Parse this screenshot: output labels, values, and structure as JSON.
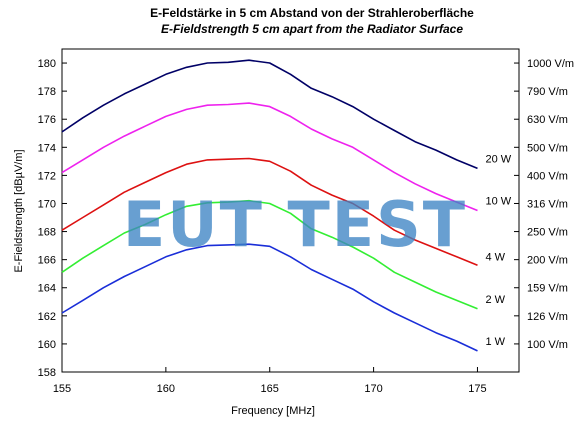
{
  "chart_data": {
    "type": "line",
    "title": "E-Feldstärke in 5 cm Abstand von der Strahleroberfläche",
    "subtitle": "E-Fieldstrength 5 cm apart from the Radiator Surface",
    "xlabel": "Frequency [MHz]",
    "ylabel": "E-Fieldstrength [dBµV/m]",
    "xlim": [
      155,
      177
    ],
    "ylim": [
      158,
      181
    ],
    "x_ticks": [
      155,
      160,
      165,
      170,
      175
    ],
    "y_ticks": [
      158,
      160,
      162,
      164,
      166,
      168,
      170,
      172,
      174,
      176,
      178,
      180
    ],
    "right_axis_labels": [
      {
        "y": 180,
        "label": "1000 V/m"
      },
      {
        "y": 178,
        "label": "790 V/m"
      },
      {
        "y": 176,
        "label": "630 V/m"
      },
      {
        "y": 174,
        "label": "500 V/m"
      },
      {
        "y": 172,
        "label": "400 V/m"
      },
      {
        "y": 170,
        "label": "316 V/m"
      },
      {
        "y": 168,
        "label": "250 V/m"
      },
      {
        "y": 166,
        "label": "200 V/m"
      },
      {
        "y": 164,
        "label": "159 V/m"
      },
      {
        "y": 162,
        "label": "126 V/m"
      },
      {
        "y": 160,
        "label": "100 V/m"
      }
    ],
    "x": [
      155,
      156,
      157,
      158,
      159,
      160,
      161,
      162,
      163,
      164,
      165,
      166,
      167,
      168,
      169,
      170,
      171,
      172,
      173,
      174,
      175
    ],
    "series": [
      {
        "name": "20 W",
        "color": "#000066",
        "label_y": 172.5,
        "values": [
          175.1,
          176.1,
          177.0,
          177.8,
          178.5,
          179.2,
          179.7,
          180.0,
          180.05,
          180.2,
          180.0,
          179.2,
          178.2,
          177.6,
          176.9,
          176.0,
          175.2,
          174.4,
          173.8,
          173.1,
          172.5
        ]
      },
      {
        "name": "10 W",
        "color": "#ee22ee",
        "label_y": 169.5,
        "values": [
          172.2,
          173.1,
          174.0,
          174.8,
          175.5,
          176.2,
          176.7,
          177.0,
          177.05,
          177.15,
          176.9,
          176.2,
          175.3,
          174.6,
          174.0,
          173.1,
          172.2,
          171.4,
          170.7,
          170.1,
          169.5
        ]
      },
      {
        "name": "4 W",
        "color": "#dd1111",
        "label_y": 165.5,
        "values": [
          168.1,
          169.0,
          169.9,
          170.8,
          171.5,
          172.2,
          172.8,
          173.1,
          173.15,
          173.2,
          173.0,
          172.3,
          171.3,
          170.6,
          170.0,
          169.1,
          168.1,
          167.4,
          166.8,
          166.2,
          165.6
        ]
      },
      {
        "name": "2 W",
        "color": "#33ee33",
        "label_y": 162.5,
        "values": [
          165.1,
          166.1,
          167.0,
          167.9,
          168.5,
          169.2,
          169.8,
          170.05,
          170.1,
          170.2,
          170.0,
          169.3,
          168.2,
          167.6,
          166.9,
          166.1,
          165.1,
          164.4,
          163.7,
          163.1,
          162.5
        ]
      },
      {
        "name": "1 W",
        "color": "#1a2ed8",
        "label_y": 159.5,
        "values": [
          162.2,
          163.1,
          164.0,
          164.8,
          165.5,
          166.2,
          166.7,
          167.0,
          167.05,
          167.1,
          166.95,
          166.2,
          165.3,
          164.6,
          163.9,
          163.0,
          162.2,
          161.5,
          160.8,
          160.2,
          159.5
        ]
      }
    ],
    "grid": false,
    "legend": "right-of-lines"
  },
  "watermark": {
    "text": "EUT TEST"
  }
}
